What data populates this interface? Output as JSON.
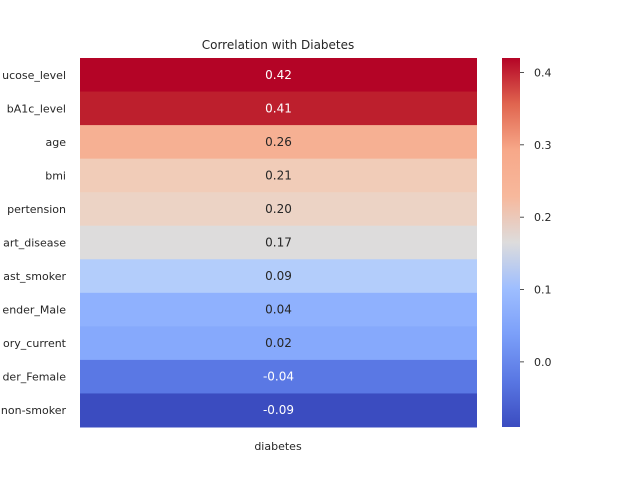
{
  "chart_data": {
    "type": "heatmap",
    "title": "Correlation with Diabetes",
    "xlabel": "",
    "ylabel": "",
    "columns": [
      "diabetes"
    ],
    "rows": [
      {
        "label": "ucose_level",
        "value": 0.42,
        "display": "0.42",
        "color": "#b40426"
      },
      {
        "label": "bA1c_level",
        "value": 0.41,
        "display": "0.41",
        "color": "#bd1f2d"
      },
      {
        "label": "age",
        "value": 0.26,
        "display": "0.26",
        "color": "#f6b093"
      },
      {
        "label": "bmi",
        "value": 0.21,
        "display": "0.21",
        "color": "#f1ccb8"
      },
      {
        "label": "pertension",
        "value": 0.2,
        "display": "0.20",
        "color": "#ecd3c5"
      },
      {
        "label": "art_disease",
        "value": 0.17,
        "display": "0.17",
        "color": "#dddcdc"
      },
      {
        "label": "ast_smoker",
        "value": 0.09,
        "display": "0.09",
        "color": "#b3cdfb"
      },
      {
        "label": "ender_Male",
        "value": 0.04,
        "display": "0.04",
        "color": "#8fb1fe"
      },
      {
        "label": "ory_current",
        "value": 0.02,
        "display": "0.02",
        "color": "#86a9fc"
      },
      {
        "label": "der_Female",
        "value": -0.04,
        "display": "-0.04",
        "color": "#5a78e4"
      },
      {
        "label": "non-smoker",
        "value": -0.09,
        "display": "-0.09",
        "color": "#3b4cc0"
      }
    ],
    "colorbar": {
      "colormap": "coolwarm",
      "range": [
        -0.09,
        0.42
      ],
      "ticks": [
        0.0,
        0.1,
        0.2,
        0.3,
        0.4
      ],
      "tick_labels": [
        "0.0",
        "0.1",
        "0.2",
        "0.3",
        "0.4"
      ]
    },
    "annotation_colors": {
      "light": "#ffffff",
      "dark": "#262626"
    }
  }
}
